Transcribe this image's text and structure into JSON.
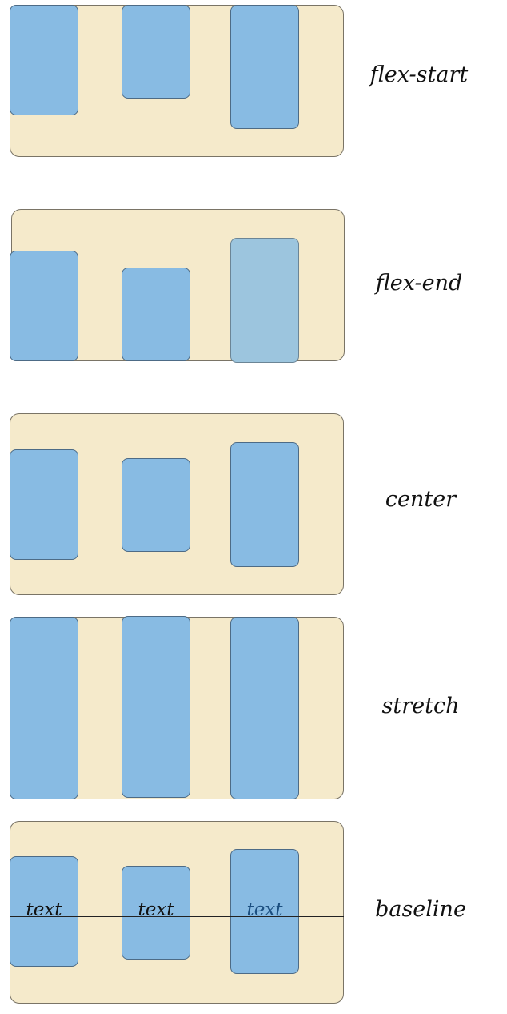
{
  "colors": {
    "container_fill": "#f5eacb",
    "container_border": "#7a7466",
    "item_fill": "#88bbe3",
    "item_border": "#4d6b86",
    "baseline_line": "#222222"
  },
  "rows": [
    {
      "label": "flex-start"
    },
    {
      "label": "flex-end"
    },
    {
      "label": "center"
    },
    {
      "label": "stretch"
    },
    {
      "label": "baseline",
      "item_texts": [
        "text",
        "text",
        "text"
      ]
    }
  ]
}
